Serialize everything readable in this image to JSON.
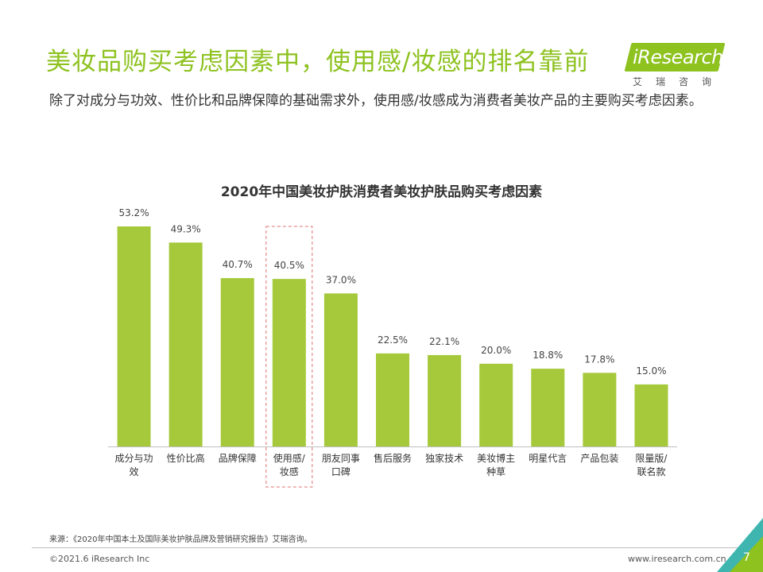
{
  "header": {
    "title": "美妆品购买考虑因素中，使用感/妆感的排名靠前",
    "subtitle": "除了对成分与功效、性价比和品牌保障的基础需求外，使用感/妆感成为消费者美妆产品的主要购买考虑因素。"
  },
  "logo": {
    "name": "iResearch",
    "sub": "艾瑞咨询"
  },
  "chart_data": {
    "type": "bar",
    "title": "2020年中国美妆护肤消费者美妆护肤品购买考虑因素",
    "categories": [
      "成分与功效",
      "性价比高",
      "品牌保障",
      "使用感/妆感",
      "朋友同事口碑",
      "售后服务",
      "独家技术",
      "美妆博主种草",
      "明星代言",
      "产品包装",
      "限量版/联名款"
    ],
    "category_lines": [
      [
        "成分与功",
        "效"
      ],
      [
        "性价比高"
      ],
      [
        "品牌保障"
      ],
      [
        "使用感/",
        "妆感"
      ],
      [
        "朋友同事",
        "口碑"
      ],
      [
        "售后服务"
      ],
      [
        "独家技术"
      ],
      [
        "美妆博主",
        "种草"
      ],
      [
        "明星代言"
      ],
      [
        "产品包装"
      ],
      [
        "限量版/",
        "联名款"
      ]
    ],
    "values": [
      53.2,
      49.3,
      40.7,
      40.5,
      37.0,
      22.5,
      22.1,
      20.0,
      18.8,
      17.8,
      15.0
    ],
    "value_labels": [
      "53.2%",
      "49.3%",
      "40.7%",
      "40.5%",
      "37.0%",
      "22.5%",
      "22.1%",
      "20.0%",
      "18.8%",
      "17.8%",
      "15.0%"
    ],
    "unit": "%",
    "highlight_index": 3,
    "ylim": [
      0,
      60
    ],
    "xlabel": "",
    "ylabel": "",
    "bar_color": "#a5c93a",
    "highlight_border_color": "#e07070"
  },
  "footer": {
    "source": "来源：《2020年中国本土及国际美妆护肤品牌及营销研究报告》艾瑞咨询。",
    "copyright": "©2021.6 iResearch Inc",
    "website": "www.iresearch.com.cn",
    "page": "7"
  },
  "colors": {
    "accent": "#8dc21f",
    "corner_teal": "#3fb5b0",
    "corner_green": "#8dc21f"
  }
}
